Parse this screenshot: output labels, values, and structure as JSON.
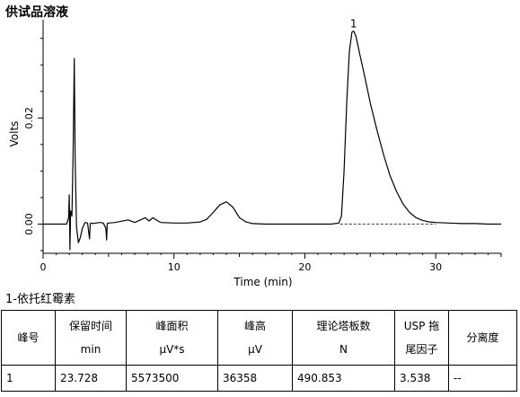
{
  "page_title": "供试品溶液",
  "compound_label": "1-依托红霉素",
  "chart_data": {
    "type": "line",
    "title": "",
    "xlabel": "Time (min)",
    "ylabel": "Volts",
    "xlim": [
      0,
      35
    ],
    "ylim": [
      -0.0055,
      0.0385
    ],
    "x_ticks": [
      0,
      10,
      20,
      30
    ],
    "x_tick_labels": [
      "0",
      "10",
      "20",
      "30"
    ],
    "y_ticks": [
      0.0,
      0.02
    ],
    "y_tick_labels": [
      "0.00",
      "0.02"
    ],
    "grid": false,
    "series": [
      {
        "name": "",
        "x": [
          0.0,
          1.8,
          1.95,
          2.0,
          2.05,
          2.1,
          2.2,
          2.3,
          2.38,
          2.45,
          2.55,
          2.7,
          2.85,
          3.0,
          3.2,
          3.4,
          3.55,
          3.6,
          3.65,
          3.8,
          4.0,
          4.4,
          4.6,
          4.8,
          4.85,
          4.9,
          5.0,
          5.5,
          6.5,
          7.0,
          7.8,
          8.1,
          8.4,
          8.7,
          9.0,
          10.0,
          11.0,
          12.0,
          12.5,
          13.0,
          13.5,
          14.0,
          14.5,
          15.0,
          15.5,
          16.0,
          17.0,
          19.0,
          21.0,
          22.0,
          22.6,
          22.8,
          23.0,
          23.2,
          23.4,
          23.6,
          23.728,
          23.9,
          24.2,
          24.6,
          25.0,
          25.5,
          26.0,
          26.5,
          27.0,
          27.5,
          28.0,
          28.5,
          29.0,
          29.5,
          30.0,
          31.0,
          32.0,
          33.0,
          34.0,
          35.0
        ],
        "y": [
          0.0,
          0.0,
          0.0012,
          0.0055,
          -0.0048,
          0.0025,
          0.0015,
          0.0145,
          0.0312,
          0.012,
          -0.0005,
          -0.0035,
          -0.0025,
          -0.0008,
          0.0003,
          0.0002,
          -0.0028,
          0.0001,
          0.0002,
          0.0001,
          0.0002,
          0.0003,
          0.0002,
          -0.0008,
          -0.003,
          0.0001,
          0.0002,
          0.0003,
          0.0008,
          0.0003,
          0.0012,
          0.0006,
          0.0012,
          0.0007,
          0.0003,
          0.0002,
          0.0002,
          0.0004,
          0.0009,
          0.0022,
          0.0036,
          0.0042,
          0.0032,
          0.0012,
          0.0004,
          0.0001,
          0.0,
          0.0,
          0.0,
          0.0,
          0.0002,
          0.0015,
          0.01,
          0.023,
          0.0325,
          0.0362,
          0.03636,
          0.0354,
          0.032,
          0.0275,
          0.0228,
          0.0178,
          0.0132,
          0.0092,
          0.0062,
          0.0038,
          0.0022,
          0.0012,
          0.0007,
          0.0004,
          0.0003,
          0.0002,
          0.0001,
          0.0001,
          0.0,
          0.0
        ]
      }
    ],
    "baseline": {
      "x": [
        22.7,
        30.0
      ],
      "y": [
        0.0,
        0.0
      ],
      "style": "dashed"
    },
    "peak_labels": [
      {
        "text": "1",
        "x": 23.728,
        "y": 0.03636
      }
    ]
  },
  "results_table": {
    "headers": [
      {
        "line1": "峰号",
        "line2": ""
      },
      {
        "line1": "保留时间",
        "line2": "min"
      },
      {
        "line1": "峰面积",
        "line2": "μV*s"
      },
      {
        "line1": "峰高",
        "line2": "μV"
      },
      {
        "line1": "理论塔板数",
        "line2": "N"
      },
      {
        "line1": "USP 拖",
        "line2": "尾因子"
      },
      {
        "line1": "分离度",
        "line2": ""
      }
    ],
    "rows": [
      [
        "1",
        "23.728",
        "5573500",
        "36358",
        "490.853",
        "3.538",
        "--"
      ]
    ]
  }
}
